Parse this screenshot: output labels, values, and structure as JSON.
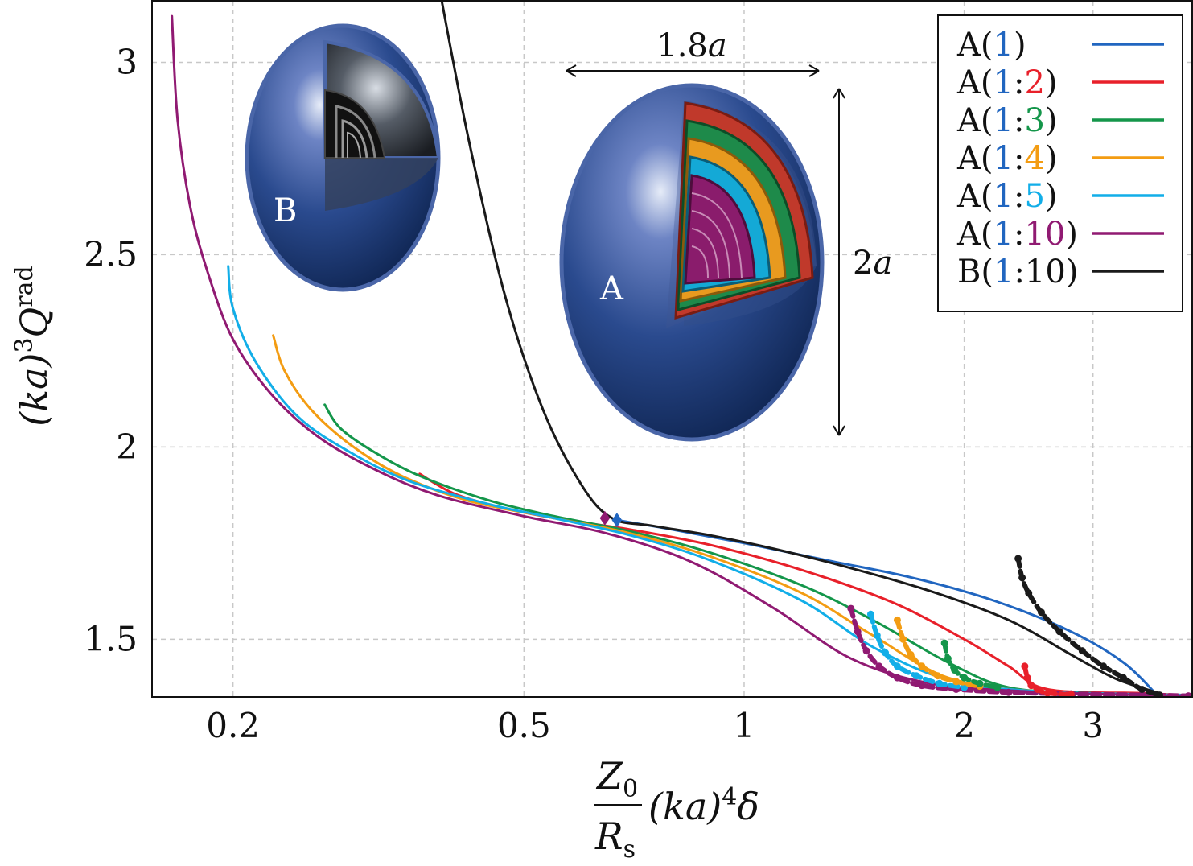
{
  "chart_data": {
    "type": "line",
    "x_scale": "log",
    "xlim": [
      0.155,
      4.1
    ],
    "ylim": [
      1.35,
      3.16
    ],
    "xticks": [
      {
        "value": 0.2,
        "label": "0.2"
      },
      {
        "value": 0.5,
        "label": "0.5"
      },
      {
        "value": 1,
        "label": "1"
      },
      {
        "value": 2,
        "label": "2"
      },
      {
        "value": 3,
        "label": "3"
      }
    ],
    "yticks": [
      {
        "value": 1.5,
        "label": "1.5"
      },
      {
        "value": 2,
        "label": "2"
      },
      {
        "value": 2.5,
        "label": "2.5"
      },
      {
        "value": 3,
        "label": "3"
      }
    ],
    "grid": true,
    "xlabel": {
      "num": "Z",
      "num_sub": "0",
      "den": "R",
      "den_sub": "s",
      "tail": "(ka)",
      "tail_sup": "4",
      "tail_end": "δ"
    },
    "ylabel": {
      "main": "(ka)",
      "sup1": "3",
      "q": "Q",
      "sup2": "rad"
    },
    "legend": {
      "position": "top-right",
      "entries": [
        {
          "prefix": "A(",
          "parts": [
            {
              "t": "1",
              "c": "#2166c0"
            }
          ],
          "suffix": ")",
          "color": "#2166c0"
        },
        {
          "prefix": "A(",
          "parts": [
            {
              "t": "1",
              "c": "#2166c0"
            },
            {
              "t": ":",
              "c": "#111111"
            },
            {
              "t": "2",
              "c": "#e8202a"
            }
          ],
          "suffix": ")",
          "color": "#e8202a"
        },
        {
          "prefix": "A(",
          "parts": [
            {
              "t": "1",
              "c": "#2166c0"
            },
            {
              "t": ":",
              "c": "#111111"
            },
            {
              "t": "3",
              "c": "#14964a"
            }
          ],
          "suffix": ")",
          "color": "#14964a"
        },
        {
          "prefix": "A(",
          "parts": [
            {
              "t": "1",
              "c": "#2166c0"
            },
            {
              "t": ":",
              "c": "#111111"
            },
            {
              "t": "4",
              "c": "#f39c12"
            }
          ],
          "suffix": ")",
          "color": "#f39c12"
        },
        {
          "prefix": "A(",
          "parts": [
            {
              "t": "1",
              "c": "#2166c0"
            },
            {
              "t": ":",
              "c": "#111111"
            },
            {
              "t": "5",
              "c": "#12aee8"
            }
          ],
          "suffix": ")",
          "color": "#12aee8"
        },
        {
          "prefix": "A(",
          "parts": [
            {
              "t": "1",
              "c": "#2166c0"
            },
            {
              "t": ":",
              "c": "#111111"
            },
            {
              "t": "10",
              "c": "#901a72"
            }
          ],
          "suffix": ")",
          "color": "#901a72"
        },
        {
          "prefix": "B(",
          "parts": [
            {
              "t": "1",
              "c": "#2166c0"
            },
            {
              "t": ":10",
              "c": "#111111"
            }
          ],
          "suffix": ")",
          "color": "#1a1a1a"
        }
      ]
    },
    "series": [
      {
        "name": "A(1)",
        "color": "#2166c0",
        "x": [
          0.67,
          0.8,
          1.0,
          1.3,
          1.7,
          2.2,
          2.8,
          3.3,
          3.65
        ],
        "y": [
          1.81,
          1.785,
          1.75,
          1.705,
          1.66,
          1.6,
          1.52,
          1.44,
          1.36
        ]
      },
      {
        "name": "A(1:2)",
        "color": "#e8202a",
        "x": [
          0.36,
          0.4,
          0.46,
          0.55,
          0.7,
          0.9,
          1.2,
          1.6,
          2.0,
          2.3,
          2.6,
          3.5,
          4.0
        ],
        "y": [
          1.93,
          1.88,
          1.845,
          1.815,
          1.785,
          1.745,
          1.68,
          1.595,
          1.5,
          1.43,
          1.37,
          1.36,
          1.355
        ]
      },
      {
        "name": "A(1:3)",
        "color": "#14964a",
        "x": [
          0.267,
          0.28,
          0.31,
          0.36,
          0.45,
          0.55,
          0.7,
          0.9,
          1.2,
          1.5,
          1.9,
          2.3,
          3.0,
          4.0
        ],
        "y": [
          2.11,
          2.05,
          1.99,
          1.925,
          1.86,
          1.82,
          1.78,
          1.725,
          1.64,
          1.55,
          1.44,
          1.375,
          1.36,
          1.355
        ]
      },
      {
        "name": "A(1:4)",
        "color": "#f39c12",
        "x": [
          0.227,
          0.235,
          0.255,
          0.29,
          0.34,
          0.42,
          0.55,
          0.7,
          0.9,
          1.2,
          1.5,
          1.9,
          2.5,
          4.0
        ],
        "y": [
          2.29,
          2.2,
          2.1,
          2.005,
          1.925,
          1.86,
          1.815,
          1.775,
          1.715,
          1.62,
          1.51,
          1.4,
          1.365,
          1.355
        ]
      },
      {
        "name": "A(1:5)",
        "color": "#12aee8",
        "x": [
          0.197,
          0.2,
          0.215,
          0.245,
          0.29,
          0.35,
          0.45,
          0.55,
          0.7,
          0.9,
          1.2,
          1.5,
          1.9,
          2.5,
          4.0
        ],
        "y": [
          2.47,
          2.36,
          2.22,
          2.08,
          1.985,
          1.91,
          1.85,
          1.815,
          1.77,
          1.705,
          1.6,
          1.48,
          1.395,
          1.365,
          1.355
        ]
      },
      {
        "name": "A(1:10)",
        "color": "#901a72",
        "x": [
          0.165,
          0.168,
          0.175,
          0.185,
          0.2,
          0.225,
          0.26,
          0.31,
          0.38,
          0.5,
          0.65,
          0.85,
          1.1,
          1.4,
          1.8,
          2.4,
          3.0,
          4.0
        ],
        "y": [
          3.12,
          2.85,
          2.62,
          2.45,
          2.28,
          2.14,
          2.03,
          1.945,
          1.875,
          1.82,
          1.775,
          1.7,
          1.58,
          1.45,
          1.385,
          1.365,
          1.358,
          1.353
        ]
      },
      {
        "name": "B(1:10)",
        "color": "#1a1a1a",
        "x": [
          0.385,
          0.42,
          0.47,
          0.53,
          0.6,
          0.66,
          0.75,
          0.9,
          1.1,
          1.4,
          1.8,
          2.3,
          2.8,
          3.2,
          3.55,
          3.7
        ],
        "y": [
          3.17,
          2.8,
          2.4,
          2.1,
          1.9,
          1.815,
          1.795,
          1.77,
          1.735,
          1.685,
          1.625,
          1.55,
          1.46,
          1.4,
          1.37,
          1.36
        ]
      }
    ],
    "dotted_tails": [
      {
        "color": "#901a72",
        "x": [
          1.4,
          1.43,
          1.47,
          1.53,
          1.62,
          1.75,
          1.95,
          2.3,
          2.8,
          3.5,
          4.05
        ],
        "y": [
          1.58,
          1.52,
          1.47,
          1.43,
          1.4,
          1.38,
          1.37,
          1.362,
          1.358,
          1.355,
          1.353
        ]
      },
      {
        "color": "#12aee8",
        "x": [
          1.49,
          1.52,
          1.56,
          1.62,
          1.72,
          1.85,
          2.0
        ],
        "y": [
          1.565,
          1.51,
          1.465,
          1.43,
          1.405,
          1.385,
          1.375
        ]
      },
      {
        "color": "#f39c12",
        "x": [
          1.62,
          1.65,
          1.69,
          1.75,
          1.84,
          1.95,
          2.1
        ],
        "y": [
          1.55,
          1.5,
          1.46,
          1.43,
          1.405,
          1.39,
          1.378
        ]
      },
      {
        "color": "#14964a",
        "x": [
          1.88,
          1.9,
          1.94,
          2.0,
          2.1,
          2.22
        ],
        "y": [
          1.49,
          1.45,
          1.42,
          1.4,
          1.385,
          1.375
        ]
      },
      {
        "color": "#e8202a",
        "x": [
          2.42,
          2.44,
          2.47,
          2.52,
          2.6,
          2.8
        ],
        "y": [
          1.43,
          1.4,
          1.38,
          1.37,
          1.36,
          1.357
        ]
      },
      {
        "color": "#1a1a1a",
        "x": [
          2.37,
          2.4,
          2.45,
          2.55,
          2.7,
          2.9,
          3.1,
          3.3,
          3.5,
          3.7
        ],
        "y": [
          1.71,
          1.66,
          1.62,
          1.57,
          1.52,
          1.47,
          1.43,
          1.4,
          1.37,
          1.355
        ]
      }
    ],
    "markers": [
      {
        "shape": "diamond",
        "color": "#901a72",
        "x": 0.645,
        "y": 1.815
      },
      {
        "shape": "diamond",
        "color": "#2166c0",
        "x": 0.67,
        "y": 1.81
      }
    ],
    "annotations": {
      "width_label": "1.8a",
      "width_label_num": "1.8",
      "width_label_var": "a",
      "height_label_num": "2",
      "height_label_var": "a",
      "sphere_a": "A",
      "sphere_b": "B"
    }
  }
}
